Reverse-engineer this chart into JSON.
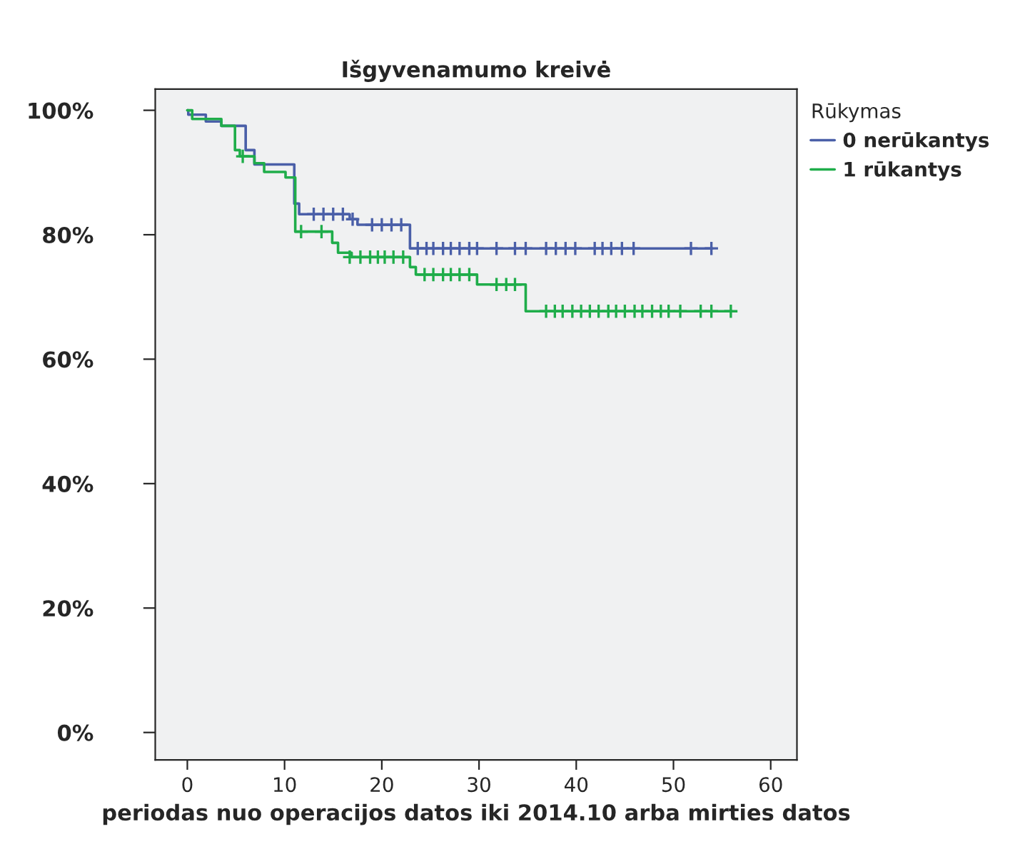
{
  "chart_data": {
    "type": "step",
    "title": "Išgyvenamumo kreivė",
    "xlabel": "periodas nuo operacijos datos iki 2014.10 arba mirties datos",
    "legend_title": "Rūkymas",
    "legend": "top right",
    "grid": false,
    "xlim": [
      -3.3,
      62.7
    ],
    "xticks": [
      0,
      10,
      20,
      30,
      40,
      50,
      60
    ],
    "ylim": [
      -4.4,
      103.4
    ],
    "yticks": [
      {
        "value": 0,
        "label": "0%"
      },
      {
        "value": 20,
        "label": "20%"
      },
      {
        "value": 40,
        "label": "40%"
      },
      {
        "value": 60,
        "label": "60%"
      },
      {
        "value": 80,
        "label": "80%"
      },
      {
        "value": 100,
        "label": "100%"
      }
    ],
    "series": [
      {
        "name": "0 nerūkantys",
        "color": "#4a5fa8",
        "x": [
          0,
          0.1,
          1.9,
          3.5,
          6.0,
          6.9,
          11.0,
          11.5,
          16.7,
          17.5,
          22.9,
          54.0
        ],
        "values": [
          100,
          99.3,
          98.2,
          97.5,
          93.6,
          91.3,
          85.0,
          83.3,
          82.5,
          81.6,
          77.8,
          77.8
        ]
      },
      {
        "name": "1 rūkantys",
        "color": "#1fad4a",
        "x": [
          0,
          0.5,
          3.5,
          4.9,
          5.4,
          6.9,
          7.9,
          10.1,
          11.1,
          14.9,
          15.5,
          16.9,
          22.9,
          23.5,
          29.8,
          34.8,
          56.0
        ],
        "values": [
          100,
          98.6,
          97.5,
          93.6,
          92.6,
          91.5,
          90.1,
          89.2,
          80.5,
          78.7,
          77.1,
          76.4,
          74.8,
          73.6,
          72.0,
          67.7,
          67.7
        ]
      },
      {
        "type": "scatter",
        "marker": "cross",
        "color": "#4a5fa8",
        "x": [
          13,
          14,
          15,
          16,
          17,
          19,
          20,
          21,
          22,
          23.7,
          24.6,
          25.3,
          26.3,
          27.1,
          28.0,
          29.0,
          29.8,
          31.8,
          33.7,
          34.8,
          36.9,
          37.9,
          38.9,
          39.9,
          41.9,
          42.7,
          43.6,
          44.7,
          45.9,
          51.8,
          53.9
        ],
        "values": [
          83.3,
          83.3,
          83.3,
          83.3,
          82.5,
          81.6,
          81.6,
          81.6,
          81.6,
          77.8,
          77.8,
          77.8,
          77.8,
          77.8,
          77.8,
          77.8,
          77.8,
          77.8,
          77.8,
          77.8,
          77.8,
          77.8,
          77.8,
          77.8,
          77.8,
          77.8,
          77.8,
          77.8,
          77.8,
          77.8,
          77.8
        ]
      },
      {
        "type": "scatter",
        "marker": "cross",
        "color": "#1fad4a",
        "x": [
          5.7,
          11.7,
          13.8,
          16.7,
          17.8,
          18.8,
          19.6,
          20.3,
          21.2,
          22.2,
          24.4,
          25.3,
          26.3,
          27.1,
          28.0,
          29.0,
          31.8,
          32.8,
          33.7,
          36.9,
          37.8,
          38.6,
          39.6,
          40.5,
          41.4,
          42.3,
          43.3,
          44.1,
          45.0,
          46.0,
          46.8,
          47.8,
          48.7,
          49.5,
          50.7,
          52.8,
          53.9,
          55.9
        ],
        "values": [
          92.6,
          80.5,
          80.5,
          76.4,
          76.4,
          76.4,
          76.4,
          76.4,
          76.4,
          76.4,
          73.6,
          73.6,
          73.6,
          73.6,
          73.6,
          73.6,
          72.0,
          72.0,
          72.0,
          67.7,
          67.7,
          67.7,
          67.7,
          67.7,
          67.7,
          67.7,
          67.7,
          67.7,
          67.7,
          67.7,
          67.7,
          67.7,
          67.7,
          67.7,
          67.7,
          67.7,
          67.7,
          67.7
        ]
      }
    ]
  }
}
